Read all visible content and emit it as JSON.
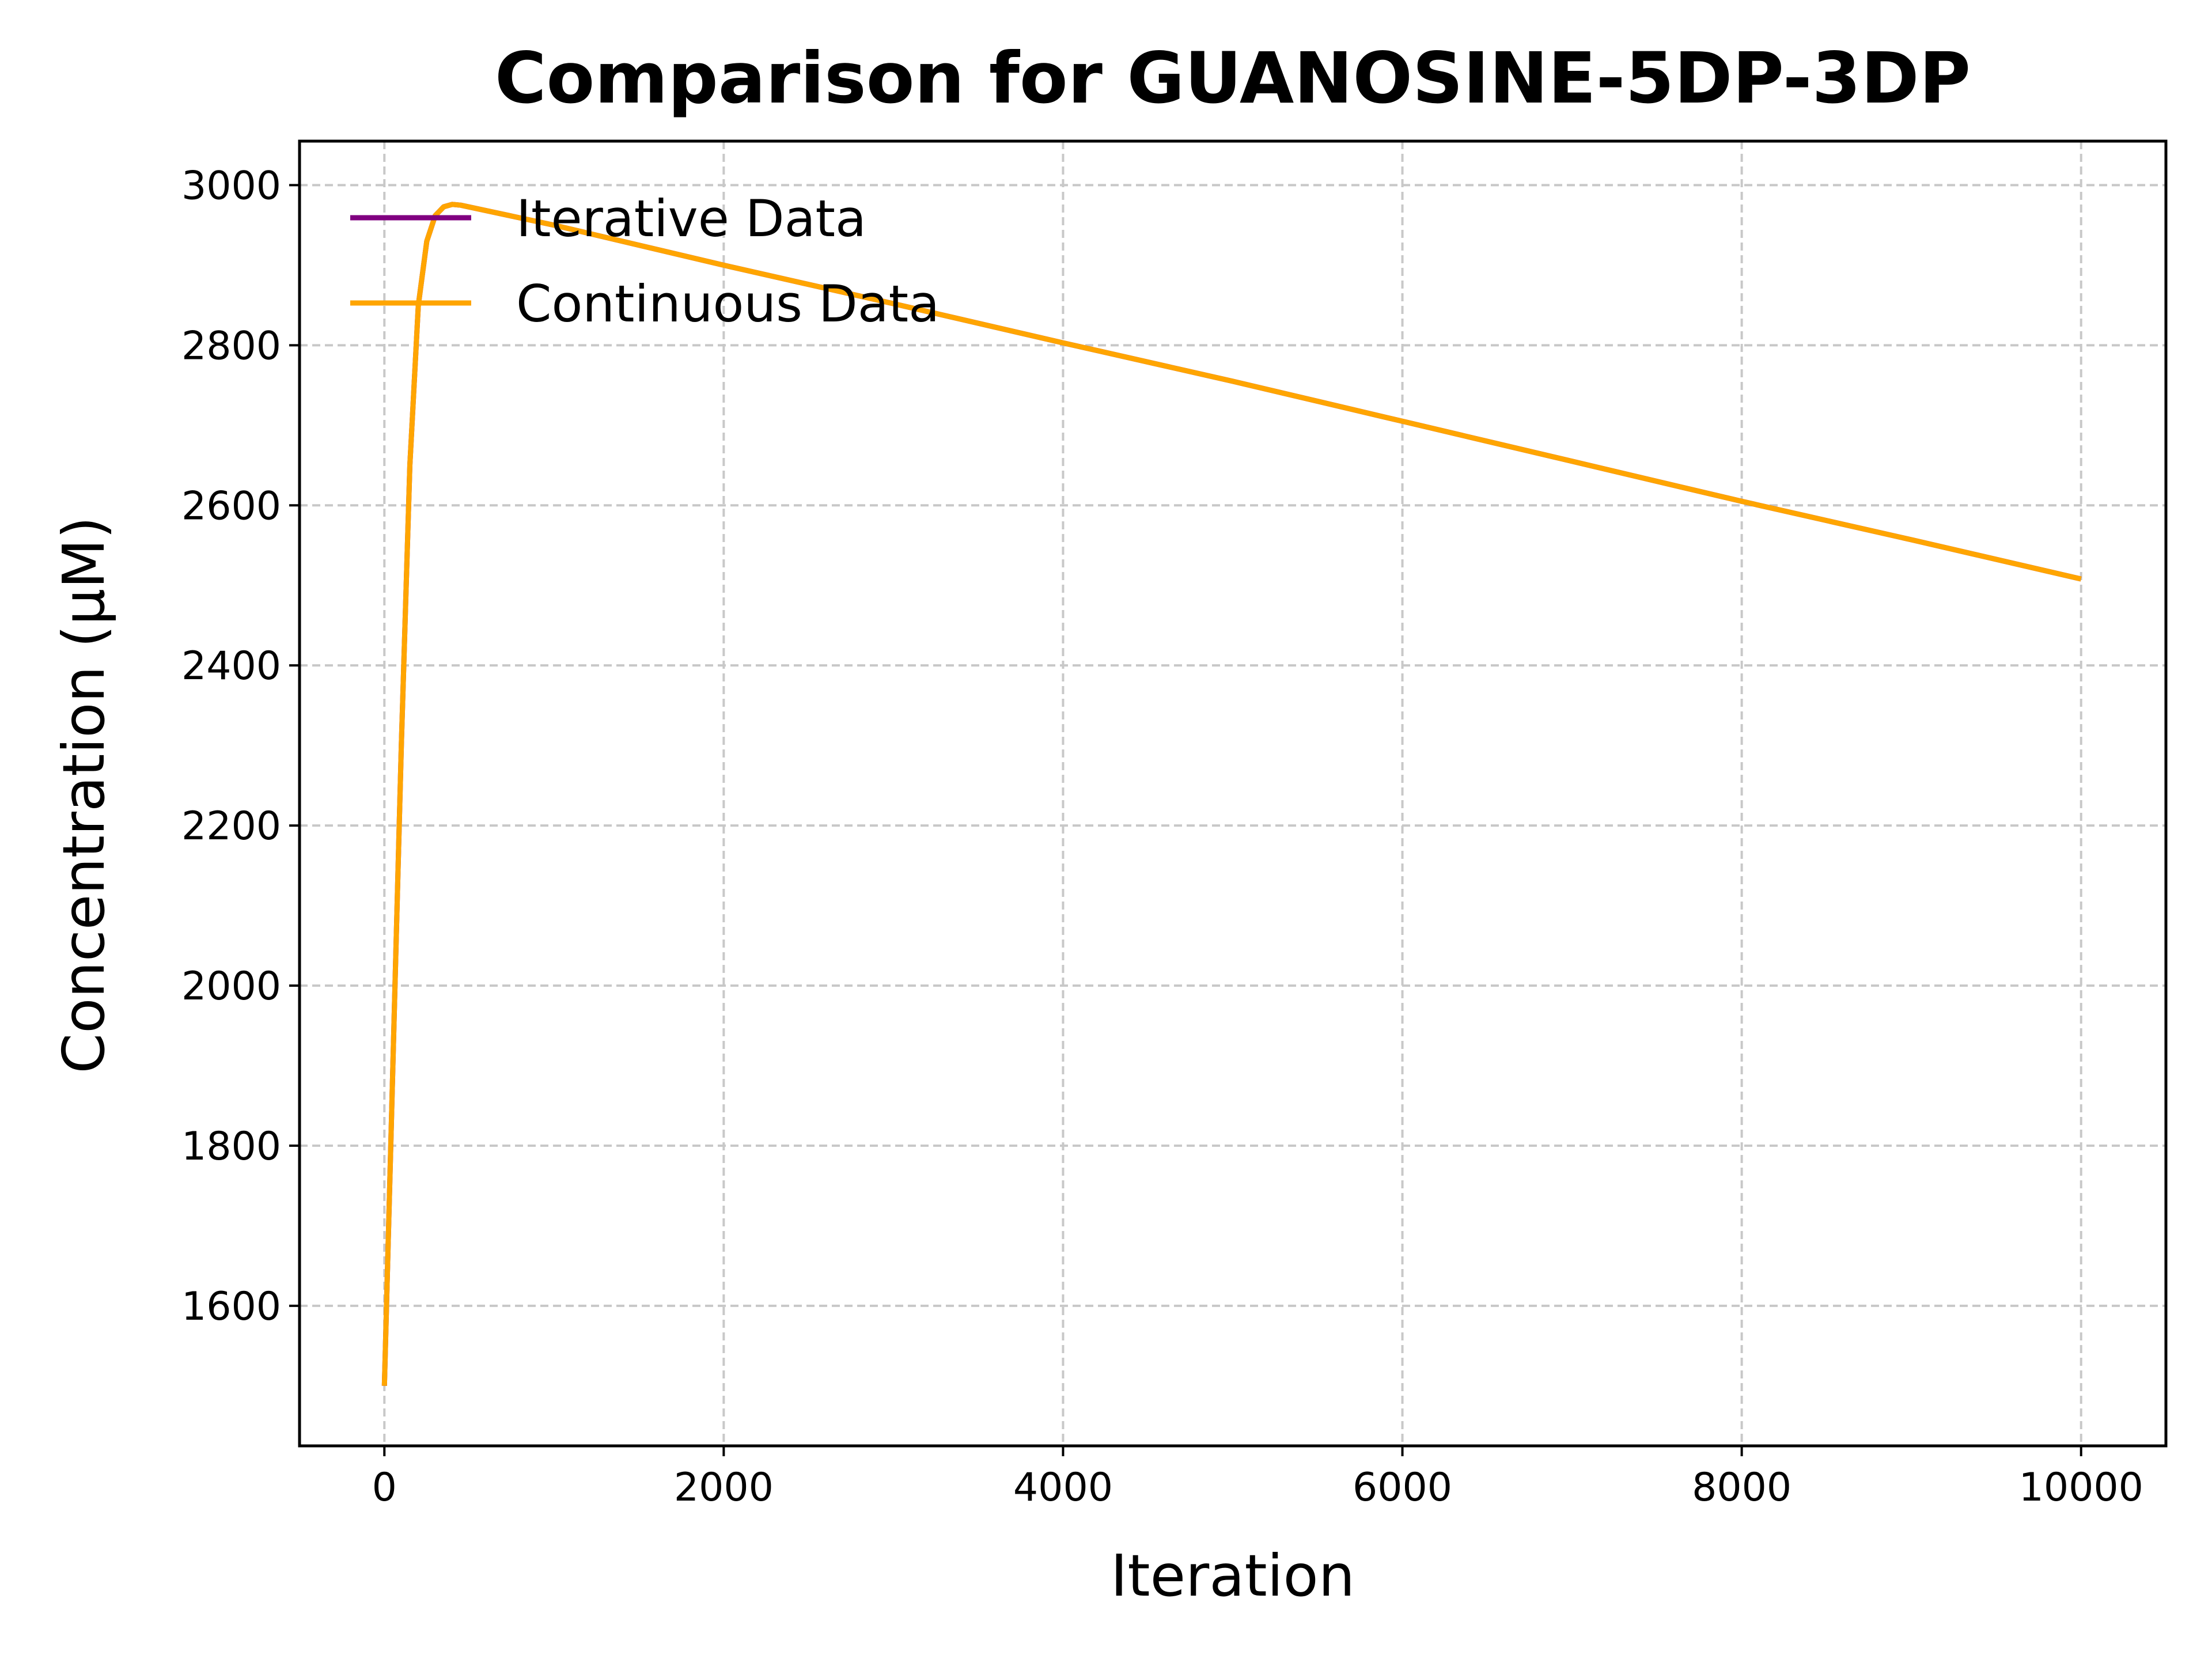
{
  "chart_data": {
    "type": "line",
    "title": "Comparison for GUANOSINE-5DP-3DP",
    "xlabel": "Iteration",
    "ylabel": "Concentration (μM)",
    "xlim": [
      -500,
      10500
    ],
    "ylim": [
      1425,
      3055
    ],
    "xticks": [
      0,
      2000,
      4000,
      6000,
      8000,
      10000
    ],
    "xtick_labels": [
      "0",
      "2000",
      "4000",
      "6000",
      "8000",
      "10000"
    ],
    "yticks": [
      1600,
      1800,
      2000,
      2200,
      2400,
      2600,
      2800,
      3000
    ],
    "ytick_labels": [
      "1600",
      "1800",
      "2000",
      "2200",
      "2400",
      "2600",
      "2800",
      "3000"
    ],
    "grid": true,
    "legend": "upper-left",
    "series": [
      {
        "name": "Iterative Data",
        "color": "#800080",
        "x": [
          0,
          40,
          100,
          150,
          200,
          250,
          300,
          350,
          400,
          450,
          1000,
          2000,
          3000,
          4000,
          5000,
          6000,
          7000,
          8000,
          9000,
          10000
        ],
        "y": [
          1500,
          1820,
          2300,
          2650,
          2850,
          2930,
          2962,
          2973,
          2976,
          2975,
          2950,
          2900,
          2852,
          2803,
          2755,
          2705,
          2655,
          2605,
          2557,
          2508
        ]
      },
      {
        "name": "Continuous Data",
        "color": "#ffa500",
        "x": [
          0,
          40,
          100,
          150,
          200,
          250,
          300,
          350,
          400,
          450,
          1000,
          2000,
          3000,
          4000,
          5000,
          6000,
          7000,
          8000,
          9000,
          10000
        ],
        "y": [
          1500,
          1820,
          2300,
          2650,
          2850,
          2930,
          2962,
          2973,
          2976,
          2975,
          2950,
          2900,
          2852,
          2803,
          2755,
          2705,
          2655,
          2605,
          2557,
          2508
        ]
      }
    ]
  }
}
